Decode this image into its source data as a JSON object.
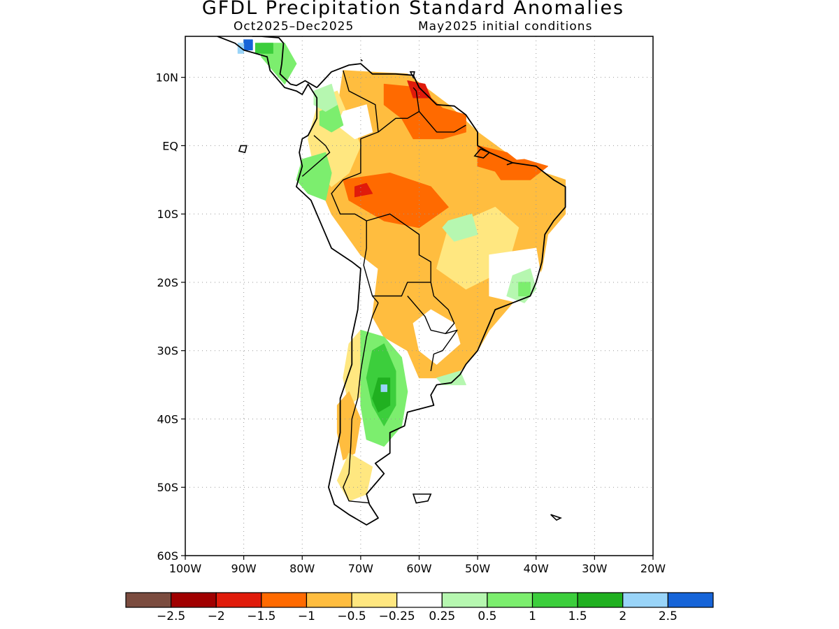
{
  "title": "GFDL Precipitation Standard Anomalies",
  "subtitle_period": "Oct2025–Dec2025",
  "subtitle_init": "May2025 initial conditions",
  "axes": {
    "lat_labels": [
      {
        "text": "10N",
        "lat": 10
      },
      {
        "text": "EQ",
        "lat": 0
      },
      {
        "text": "10S",
        "lat": -10
      },
      {
        "text": "20S",
        "lat": -20
      },
      {
        "text": "30S",
        "lat": -30
      },
      {
        "text": "40S",
        "lat": -40
      },
      {
        "text": "50S",
        "lat": -50
      },
      {
        "text": "60S",
        "lat": -60
      }
    ],
    "lon_labels": [
      {
        "text": "100W",
        "lon": -100
      },
      {
        "text": "90W",
        "lon": -90
      },
      {
        "text": "80W",
        "lon": -80
      },
      {
        "text": "70W",
        "lon": -70
      },
      {
        "text": "60W",
        "lon": -60
      },
      {
        "text": "50W",
        "lon": -50
      },
      {
        "text": "40W",
        "lon": -40
      },
      {
        "text": "30W",
        "lon": -30
      },
      {
        "text": "20W",
        "lon": -20
      }
    ],
    "lon_range": [
      -100,
      -20
    ],
    "lat_range": [
      -60,
      16
    ]
  },
  "colorbar": {
    "colors": [
      "#7b4c3f",
      "#a00000",
      "#e01b0b",
      "#ff6a00",
      "#ffbd3f",
      "#ffe780",
      "#ffffff",
      "#b6f7b0",
      "#7cee6e",
      "#3cce3c",
      "#20b020",
      "#99d4f8",
      "#1664d8"
    ],
    "labels": [
      "−2.5",
      "−2",
      "−1.5",
      "−1",
      "−0.5",
      "−0.25",
      "0.25",
      "0.5",
      "1",
      "1.5",
      "2",
      "2.5"
    ]
  },
  "regions": [
    {
      "color": "#ffbd3f",
      "pts": [
        [
          -73,
          11
        ],
        [
          -62,
          10.5
        ],
        [
          -55,
          6
        ],
        [
          -50,
          2
        ],
        [
          -42,
          -3
        ],
        [
          -35,
          -5
        ],
        [
          -35,
          -10
        ],
        [
          -38,
          -13
        ],
        [
          -39,
          -18
        ],
        [
          -41,
          -22
        ],
        [
          -44,
          -23
        ],
        [
          -48,
          -27
        ],
        [
          -50,
          -30
        ],
        [
          -53,
          -33
        ],
        [
          -56,
          -34
        ],
        [
          -60,
          -34
        ],
        [
          -62,
          -30
        ],
        [
          -66,
          -28
        ],
        [
          -68,
          -25
        ],
        [
          -67,
          -18
        ],
        [
          -70,
          -16
        ],
        [
          -75,
          -10
        ],
        [
          -78,
          -4
        ],
        [
          -75,
          0
        ],
        [
          -74,
          5
        ]
      ]
    },
    {
      "color": "#ffe780",
      "pts": [
        [
          -79,
          1
        ],
        [
          -77,
          7
        ],
        [
          -74,
          8
        ],
        [
          -72,
          4
        ],
        [
          -70,
          0
        ],
        [
          -72,
          -4
        ],
        [
          -75,
          -6
        ],
        [
          -78,
          -3
        ]
      ]
    },
    {
      "color": "#ffe780",
      "pts": [
        [
          -55,
          -12
        ],
        [
          -47,
          -9
        ],
        [
          -43,
          -12
        ],
        [
          -45,
          -18
        ],
        [
          -52,
          -21
        ],
        [
          -57,
          -18
        ]
      ]
    },
    {
      "color": "#ffe780",
      "pts": [
        [
          -70,
          -27
        ],
        [
          -68,
          -31
        ],
        [
          -69,
          -36
        ],
        [
          -72,
          -38
        ],
        [
          -73,
          -34
        ],
        [
          -72,
          -29
        ]
      ]
    },
    {
      "color": "#ffbd3f",
      "pts": [
        [
          -72,
          -36
        ],
        [
          -70,
          -40
        ],
        [
          -71,
          -45
        ],
        [
          -73,
          -46
        ],
        [
          -74,
          -42
        ],
        [
          -74,
          -38
        ]
      ]
    },
    {
      "color": "#ffe780",
      "pts": [
        [
          -72,
          -45
        ],
        [
          -68,
          -47
        ],
        [
          -69,
          -51
        ],
        [
          -72,
          -52
        ],
        [
          -74,
          -49
        ]
      ]
    },
    {
      "color": "#ffffff",
      "pts": [
        [
          -58,
          -24
        ],
        [
          -54,
          -26
        ],
        [
          -53,
          -29
        ],
        [
          -57,
          -32
        ],
        [
          -60,
          -30
        ],
        [
          -61,
          -26
        ]
      ]
    },
    {
      "color": "#ffffff",
      "pts": [
        [
          -48,
          -16
        ],
        [
          -40,
          -15
        ],
        [
          -39,
          -20
        ],
        [
          -43,
          -23
        ],
        [
          -48,
          -22
        ]
      ]
    },
    {
      "color": "#ffffff",
      "pts": [
        [
          -66,
          -30
        ],
        [
          -62,
          -32
        ],
        [
          -60,
          -37
        ],
        [
          -64,
          -40
        ],
        [
          -68,
          -38
        ]
      ]
    },
    {
      "color": "#ffffff",
      "pts": [
        [
          -73,
          5
        ],
        [
          -69,
          6
        ],
        [
          -68,
          2
        ],
        [
          -71,
          1
        ],
        [
          -74,
          3
        ]
      ]
    },
    {
      "color": "#ff6a00",
      "pts": [
        [
          -66,
          9
        ],
        [
          -60,
          8.5
        ],
        [
          -56,
          5.5
        ],
        [
          -52,
          4.5
        ],
        [
          -52,
          2
        ],
        [
          -56,
          1
        ],
        [
          -61,
          1
        ],
        [
          -63,
          4
        ],
        [
          -66,
          6
        ]
      ]
    },
    {
      "color": "#ff6a00",
      "pts": [
        [
          -73,
          -5
        ],
        [
          -65,
          -4
        ],
        [
          -58,
          -6
        ],
        [
          -55,
          -9
        ],
        [
          -60,
          -12
        ],
        [
          -66,
          -11
        ],
        [
          -72,
          -8
        ]
      ]
    },
    {
      "color": "#ff6a00",
      "pts": [
        [
          -50,
          0
        ],
        [
          -45,
          -1
        ],
        [
          -42,
          -3
        ],
        [
          -46,
          -4
        ],
        [
          -50,
          -3
        ]
      ]
    },
    {
      "color": "#ff6a00",
      "pts": [
        [
          -48,
          -2.5
        ],
        [
          -42,
          -2
        ],
        [
          -38,
          -3
        ],
        [
          -41,
          -5
        ],
        [
          -46,
          -5
        ]
      ]
    },
    {
      "color": "#e01b0b",
      "pts": [
        [
          -62,
          9.5
        ],
        [
          -59,
          9
        ],
        [
          -58,
          7
        ],
        [
          -61,
          7
        ]
      ]
    },
    {
      "color": "#e01b0b",
      "pts": [
        [
          -71,
          -6
        ],
        [
          -69,
          -5.5
        ],
        [
          -68,
          -7
        ],
        [
          -71,
          -7.5
        ]
      ]
    },
    {
      "color": "#7cee6e",
      "pts": [
        [
          -80,
          -2
        ],
        [
          -76,
          -1
        ],
        [
          -75,
          -4
        ],
        [
          -76,
          -8
        ],
        [
          -79,
          -7
        ],
        [
          -81,
          -5
        ]
      ]
    },
    {
      "color": "#7cee6e",
      "pts": [
        [
          -77,
          5
        ],
        [
          -74,
          6
        ],
        [
          -73,
          3
        ],
        [
          -75,
          2
        ],
        [
          -77,
          3
        ]
      ]
    },
    {
      "color": "#b6f7b0",
      "pts": [
        [
          -78,
          8
        ],
        [
          -75,
          9
        ],
        [
          -74,
          6
        ],
        [
          -76,
          5
        ],
        [
          -78,
          6
        ]
      ]
    },
    {
      "color": "#7cee6e",
      "pts": [
        [
          -87,
          15
        ],
        [
          -83,
          15
        ],
        [
          -81,
          12
        ],
        [
          -83,
          9
        ],
        [
          -85,
          11
        ],
        [
          -87,
          13
        ]
      ]
    },
    {
      "color": "#b6f7b0",
      "pts": [
        [
          -55,
          -11
        ],
        [
          -51,
          -10
        ],
        [
          -50,
          -13
        ],
        [
          -54,
          -14
        ],
        [
          -56,
          -12
        ]
      ]
    },
    {
      "color": "#b6f7b0",
      "pts": [
        [
          -44,
          -19
        ],
        [
          -41,
          -18
        ],
        [
          -40,
          -21
        ],
        [
          -42,
          -23
        ],
        [
          -45,
          -22
        ]
      ]
    },
    {
      "color": "#7cee6e",
      "pts": [
        [
          -43,
          -20
        ],
        [
          -41,
          -20
        ],
        [
          -41,
          -22
        ],
        [
          -43,
          -22
        ]
      ]
    },
    {
      "color": "#7cee6e",
      "pts": [
        [
          -70,
          -27
        ],
        [
          -66,
          -28
        ],
        [
          -63,
          -31
        ],
        [
          -62,
          -36
        ],
        [
          -63,
          -41
        ],
        [
          -66,
          -44
        ],
        [
          -69,
          -43
        ],
        [
          -70,
          -38
        ],
        [
          -70,
          -32
        ]
      ]
    },
    {
      "color": "#3cce3c",
      "pts": [
        [
          -68,
          -30
        ],
        [
          -66,
          -29
        ],
        [
          -64,
          -33
        ],
        [
          -64,
          -38
        ],
        [
          -66,
          -41
        ],
        [
          -68,
          -38
        ],
        [
          -69,
          -34
        ]
      ]
    },
    {
      "color": "#20b020",
      "pts": [
        [
          -67,
          -34
        ],
        [
          -65,
          -34
        ],
        [
          -65,
          -38
        ],
        [
          -67,
          -39
        ],
        [
          -68,
          -37
        ]
      ]
    },
    {
      "color": "#99d4f8",
      "pts": [
        [
          -66.5,
          -35
        ],
        [
          -65.5,
          -35
        ],
        [
          -65.5,
          -36
        ],
        [
          -66.5,
          -36
        ]
      ]
    },
    {
      "color": "#b6f7b0",
      "pts": [
        [
          -57,
          -34
        ],
        [
          -53,
          -33
        ],
        [
          -52,
          -35
        ],
        [
          -56,
          -35
        ]
      ]
    },
    {
      "color": "#1664d8",
      "pts": [
        [
          -90,
          15.5
        ],
        [
          -88.5,
          15.5
        ],
        [
          -88.5,
          14
        ],
        [
          -90,
          14
        ]
      ]
    },
    {
      "color": "#99d4f8",
      "pts": [
        [
          -91,
          15
        ],
        [
          -90,
          15
        ],
        [
          -90,
          13.5
        ],
        [
          -91,
          13.5
        ]
      ]
    },
    {
      "color": "#3cce3c",
      "pts": [
        [
          -88,
          15
        ],
        [
          -85,
          15
        ],
        [
          -85,
          13.5
        ],
        [
          -88,
          13.5
        ]
      ]
    }
  ],
  "land_outline": [
    [
      -77.5,
      8.5
    ],
    [
      -75,
      10.8
    ],
    [
      -72,
      11.8
    ],
    [
      -70,
      12
    ],
    [
      -68,
      10.5
    ],
    [
      -64,
      10.5
    ],
    [
      -61,
      10.3
    ],
    [
      -60,
      8.5
    ],
    [
      -57,
      6
    ],
    [
      -54,
      5.8
    ],
    [
      -52,
      4.5
    ],
    [
      -50,
      2
    ],
    [
      -50,
      0
    ],
    [
      -48,
      -1
    ],
    [
      -44,
      -2.5
    ],
    [
      -40,
      -3
    ],
    [
      -37,
      -5
    ],
    [
      -35,
      -6
    ],
    [
      -35,
      -9
    ],
    [
      -37,
      -11
    ],
    [
      -38.5,
      -13
    ],
    [
      -39,
      -17
    ],
    [
      -40,
      -20
    ],
    [
      -41,
      -22
    ],
    [
      -44,
      -23
    ],
    [
      -47,
      -24
    ],
    [
      -48.5,
      -27
    ],
    [
      -50,
      -30
    ],
    [
      -52,
      -32
    ],
    [
      -53,
      -33.5
    ],
    [
      -54.5,
      -34.7
    ],
    [
      -57,
      -35
    ],
    [
      -58,
      -36.5
    ],
    [
      -57.5,
      -38
    ],
    [
      -62,
      -39
    ],
    [
      -62.5,
      -41
    ],
    [
      -65,
      -42
    ],
    [
      -65,
      -45
    ],
    [
      -67.5,
      -46.5
    ],
    [
      -66,
      -48
    ],
    [
      -69,
      -51
    ],
    [
      -68.5,
      -52.5
    ],
    [
      -67,
      -54.5
    ],
    [
      -69,
      -55.5
    ],
    [
      -72,
      -54
    ],
    [
      -74.5,
      -52.5
    ],
    [
      -75.5,
      -50
    ],
    [
      -74.5,
      -46
    ],
    [
      -73.5,
      -42
    ],
    [
      -73.5,
      -37
    ],
    [
      -71.5,
      -32
    ],
    [
      -71.5,
      -28
    ],
    [
      -70.5,
      -24
    ],
    [
      -70,
      -18
    ],
    [
      -71.5,
      -17
    ],
    [
      -75,
      -15
    ],
    [
      -76.5,
      -12
    ],
    [
      -78.5,
      -8
    ],
    [
      -81,
      -6
    ],
    [
      -80,
      -3
    ],
    [
      -80.5,
      -1
    ],
    [
      -80,
      1
    ],
    [
      -79,
      1.5
    ],
    [
      -77.5,
      4
    ],
    [
      -77.5,
      7
    ],
    [
      -79,
      9
    ],
    [
      -80,
      7.5
    ],
    [
      -81,
      8
    ],
    [
      -83,
      8.5
    ],
    [
      -85.5,
      11
    ],
    [
      -86,
      13
    ],
    [
      -88,
      13.5
    ],
    [
      -90,
      14
    ],
    [
      -91.5,
      15
    ],
    [
      -94.5,
      16
    ]
  ],
  "land_outline_2": [
    [
      -88,
      18
    ],
    [
      -88.5,
      16
    ],
    [
      -87,
      16
    ],
    [
      -84,
      15.8
    ],
    [
      -83.2,
      15
    ],
    [
      -83.5,
      12
    ],
    [
      -83.8,
      10.5
    ],
    [
      -82,
      9
    ],
    [
      -81,
      8.8
    ],
    [
      -79.5,
      9.5
    ],
    [
      -77.5,
      8.5
    ]
  ],
  "borders": [
    [
      [
        -73,
        11
      ],
      [
        -72,
        8
      ],
      [
        -67.5,
        6
      ],
      [
        -67,
        2
      ],
      [
        -70,
        1
      ],
      [
        -70,
        -4
      ],
      [
        -73,
        -5
      ],
      [
        -75,
        -7
      ],
      [
        -73.5,
        -10
      ],
      [
        -71,
        -10
      ],
      [
        -69,
        -11
      ]
    ],
    [
      [
        -78,
        1.5
      ],
      [
        -76,
        0
      ],
      [
        -75.3,
        -1
      ],
      [
        -78,
        -3
      ],
      [
        -80,
        -4.5
      ]
    ],
    [
      [
        -67,
        2
      ],
      [
        -64,
        4
      ],
      [
        -62,
        4
      ],
      [
        -60,
        5
      ],
      [
        -60.5,
        8
      ],
      [
        -61,
        8.5
      ]
    ],
    [
      [
        -60,
        5
      ],
      [
        -57,
        2
      ],
      [
        -54,
        2
      ],
      [
        -52,
        3
      ]
    ],
    [
      [
        -69,
        -11
      ],
      [
        -65,
        -10
      ],
      [
        -60,
        -13
      ],
      [
        -60,
        -16
      ],
      [
        -58,
        -17
      ],
      [
        -58,
        -20
      ],
      [
        -57.5,
        -22
      ]
    ],
    [
      [
        -69,
        -11
      ],
      [
        -69,
        -15
      ],
      [
        -69.5,
        -17.5
      ],
      [
        -68,
        -22
      ],
      [
        -67,
        -23
      ]
    ],
    [
      [
        -68,
        -22
      ],
      [
        -66,
        -22
      ],
      [
        -63,
        -22
      ],
      [
        -62,
        -20
      ],
      [
        -58,
        -20
      ]
    ],
    [
      [
        -57.5,
        -22
      ],
      [
        -55,
        -24
      ],
      [
        -54,
        -26
      ],
      [
        -55.5,
        -27.5
      ],
      [
        -58,
        -27
      ],
      [
        -59,
        -25
      ],
      [
        -62,
        -22
      ]
    ],
    [
      [
        -55.5,
        -27.5
      ],
      [
        -53.5,
        -27
      ],
      [
        -56,
        -30
      ],
      [
        -57.5,
        -30.5
      ],
      [
        -58,
        -33
      ]
    ],
    [
      [
        -67,
        -23
      ],
      [
        -68,
        -25
      ],
      [
        -69,
        -28
      ],
      [
        -70,
        -33
      ],
      [
        -70.5,
        -37
      ],
      [
        -71.5,
        -40
      ],
      [
        -71.7,
        -44
      ],
      [
        -72,
        -48
      ],
      [
        -73,
        -50
      ],
      [
        -72,
        -52
      ],
      [
        -68.5,
        -52.3
      ]
    ]
  ],
  "islands": [
    [
      [
        -61,
        -51
      ],
      [
        -58,
        -51
      ],
      [
        -58.5,
        -52
      ],
      [
        -60.5,
        -52.3
      ]
    ],
    [
      [
        -37.5,
        -54
      ],
      [
        -35.8,
        -54.5
      ],
      [
        -36.5,
        -54.8
      ]
    ],
    [
      [
        -90.5,
        0
      ],
      [
        -89.5,
        0
      ],
      [
        -89.8,
        -1
      ],
      [
        -90.8,
        -0.8
      ]
    ],
    [
      [
        -61.5,
        10.8
      ],
      [
        -60.8,
        10.8
      ],
      [
        -61,
        10
      ]
    ],
    [
      [
        -70,
        12.6
      ],
      [
        -69.7,
        12.4
      ]
    ],
    [
      [
        -44,
        -2.5
      ],
      [
        -45,
        -2.8
      ]
    ],
    [
      [
        -48,
        -1
      ],
      [
        -49.5,
        -0.5
      ],
      [
        -50.5,
        -1.5
      ],
      [
        -49,
        -1.8
      ]
    ]
  ]
}
